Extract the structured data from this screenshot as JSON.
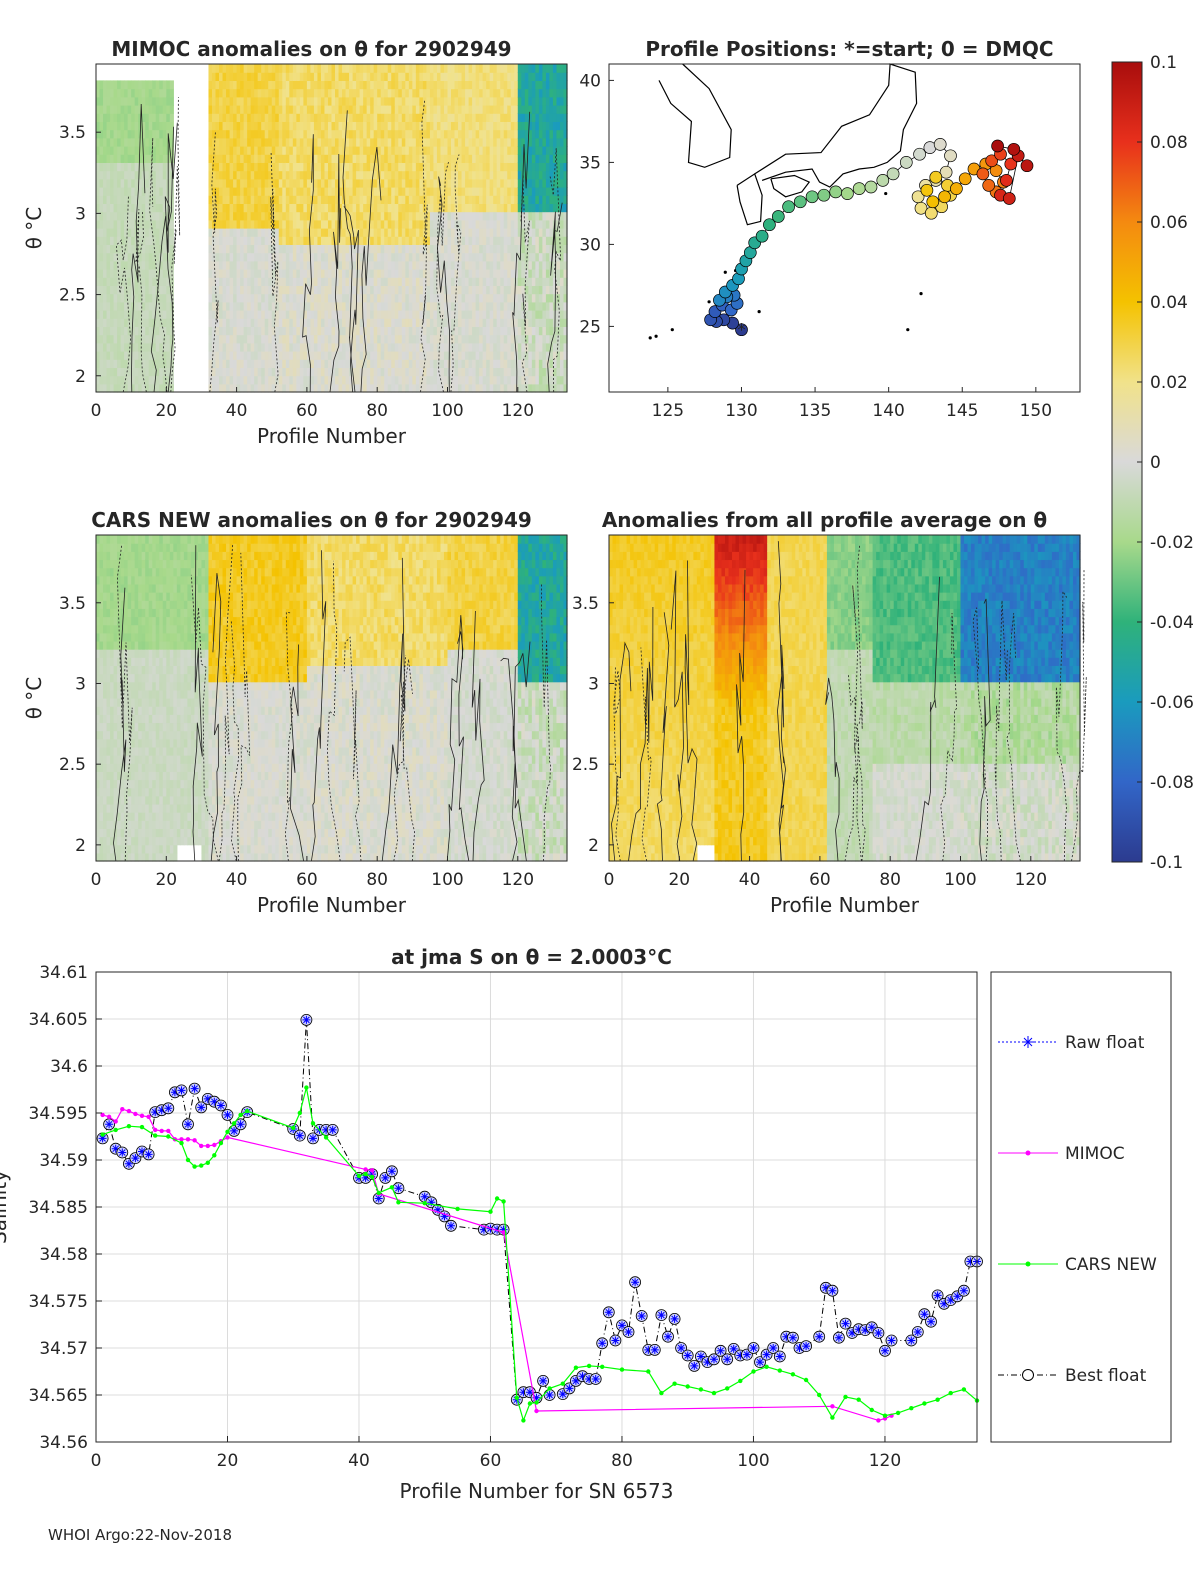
{
  "footer": "WHOI Argo:22-Nov-2018",
  "colors": {
    "raw": "#0000ff",
    "mimoc": "#ff00ff",
    "cars": "#00ff00",
    "best": "#000000"
  },
  "chart_data": [
    {
      "type": "heatmap",
      "title": "MIMOC anomalies on θ  for 2902949",
      "xlabel": "Profile Number",
      "ylabel": "θ °C",
      "xlim": [
        0,
        134
      ],
      "ylim": [
        1.9,
        3.92
      ],
      "xticks": [
        "0",
        "20",
        "40",
        "60",
        "80",
        "100",
        "120"
      ],
      "yticks": [
        "2",
        "2.5",
        "3",
        "3.5"
      ]
    },
    {
      "type": "scatter",
      "title": "Profile Positions: *=start; 0 = DMQC",
      "xlim": [
        121,
        153
      ],
      "ylim": [
        21,
        41
      ],
      "xticks": [
        "125",
        "130",
        "135",
        "140",
        "145",
        "150"
      ],
      "yticks": [
        "25",
        "30",
        "35",
        "40"
      ],
      "points": [
        [
          130.0,
          24.8
        ],
        [
          129.4,
          25.2
        ],
        [
          128.8,
          25.4
        ],
        [
          128.3,
          25.3
        ],
        [
          127.9,
          25.4
        ],
        [
          128.2,
          25.9
        ],
        [
          128.7,
          26.3
        ],
        [
          129.3,
          26.0
        ],
        [
          129.7,
          26.4
        ],
        [
          129.5,
          26.9
        ],
        [
          129.0,
          26.8
        ],
        [
          128.5,
          26.6
        ],
        [
          128.9,
          27.1
        ],
        [
          129.4,
          27.5
        ],
        [
          129.8,
          27.9
        ],
        [
          130.0,
          28.5
        ],
        [
          130.3,
          29.0
        ],
        [
          130.6,
          29.5
        ],
        [
          130.9,
          30.1
        ],
        [
          131.4,
          30.5
        ],
        [
          131.9,
          31.2
        ],
        [
          132.5,
          31.7
        ],
        [
          133.2,
          32.3
        ],
        [
          134.0,
          32.6
        ],
        [
          134.8,
          32.9
        ],
        [
          135.6,
          33.0
        ],
        [
          136.4,
          33.2
        ],
        [
          137.2,
          33.1
        ],
        [
          138.0,
          33.4
        ],
        [
          138.8,
          33.5
        ],
        [
          139.6,
          33.9
        ],
        [
          140.3,
          34.3
        ],
        [
          141.2,
          35.0
        ],
        [
          142.1,
          35.5
        ],
        [
          142.8,
          35.9
        ],
        [
          143.5,
          36.1
        ],
        [
          144.2,
          35.4
        ],
        [
          143.9,
          34.4
        ],
        [
          143.2,
          33.9
        ],
        [
          142.5,
          33.6
        ],
        [
          142.0,
          32.9
        ],
        [
          142.2,
          32.2
        ],
        [
          142.9,
          31.9
        ],
        [
          143.6,
          32.3
        ],
        [
          144.2,
          33.0
        ],
        [
          144.0,
          33.6
        ],
        [
          143.2,
          34.1
        ],
        [
          142.6,
          33.3
        ],
        [
          143.0,
          32.6
        ],
        [
          143.8,
          32.9
        ],
        [
          144.6,
          33.4
        ],
        [
          145.2,
          34.0
        ],
        [
          145.8,
          34.6
        ],
        [
          146.6,
          34.9
        ],
        [
          147.3,
          34.5
        ],
        [
          147.8,
          33.8
        ],
        [
          147.3,
          33.2
        ],
        [
          146.8,
          33.6
        ],
        [
          146.4,
          34.3
        ],
        [
          147.0,
          35.1
        ],
        [
          147.6,
          35.5
        ],
        [
          148.3,
          34.9
        ],
        [
          148.0,
          33.9
        ],
        [
          147.6,
          33.0
        ],
        [
          148.2,
          32.8
        ],
        [
          148.8,
          35.4
        ],
        [
          149.4,
          34.8
        ],
        [
          148.5,
          35.8
        ],
        [
          147.4,
          36.0
        ]
      ]
    },
    {
      "type": "heatmap",
      "title": "CARS NEW anomalies on θ for 2902949",
      "xlabel": "Profile Number",
      "ylabel": "θ °C",
      "xlim": [
        0,
        134
      ],
      "ylim": [
        1.9,
        3.92
      ],
      "xticks": [
        "0",
        "20",
        "40",
        "60",
        "80",
        "100",
        "120"
      ],
      "yticks": [
        "2",
        "2.5",
        "3",
        "3.5"
      ]
    },
    {
      "type": "heatmap",
      "title": "Anomalies from all profile average on θ",
      "xlabel": "Profile Number",
      "xlim": [
        0,
        134
      ],
      "ylim": [
        1.9,
        3.92
      ],
      "xticks": [
        "0",
        "20",
        "40",
        "60",
        "80",
        "100",
        "120"
      ],
      "yticks": [
        "2",
        "2.5",
        "3",
        "3.5"
      ]
    },
    {
      "type": "colorbar",
      "range": [
        -0.1,
        0.1
      ],
      "ticks": [
        "0.1",
        "0.08",
        "0.06",
        "0.04",
        "0.02",
        "0",
        "-0.02",
        "-0.04",
        "-0.06",
        "-0.08",
        "-0.1"
      ]
    },
    {
      "type": "line",
      "title": "at jma S on θ = 2.0003°C",
      "xlabel": "Profile Number for SN 6573",
      "ylabel": "Salinity",
      "xlim": [
        0,
        134
      ],
      "ylim": [
        34.56,
        34.61
      ],
      "xticks": [
        "0",
        "20",
        "40",
        "60",
        "80",
        "100",
        "120"
      ],
      "yticks": [
        "34.56",
        "34.565",
        "34.57",
        "34.575",
        "34.58",
        "34.585",
        "34.59",
        "34.595",
        "34.6",
        "34.605",
        "34.61"
      ],
      "legend": [
        "Raw float",
        "MIMOC",
        "CARS NEW",
        "Best float"
      ],
      "series": [
        {
          "name": "Best float",
          "x": [
            1,
            2,
            3,
            4,
            5,
            6,
            7,
            8,
            9,
            10,
            11,
            12,
            13,
            14,
            15,
            16,
            17,
            18,
            19,
            20,
            21,
            22,
            23,
            30,
            31,
            32,
            33,
            34,
            35,
            36,
            40,
            41,
            42,
            43,
            44,
            45,
            46,
            50,
            51,
            52,
            53,
            54,
            59,
            60,
            61,
            62,
            64,
            65,
            66,
            67,
            68,
            69,
            71,
            72,
            73,
            74,
            75,
            76,
            77,
            78,
            79,
            80,
            81,
            82,
            83,
            84,
            85,
            86,
            87,
            88,
            89,
            90,
            91,
            92,
            93,
            94,
            95,
            96,
            97,
            98,
            99,
            100,
            101,
            102,
            103,
            104,
            105,
            106,
            107,
            108,
            110,
            111,
            112,
            113,
            114,
            115,
            116,
            117,
            118,
            119,
            120,
            121,
            124,
            125,
            126,
            127,
            128,
            129,
            130,
            131,
            132,
            133,
            134
          ],
          "values": [
            34.5923,
            34.5938,
            34.5912,
            34.5908,
            34.5896,
            34.5902,
            34.5909,
            34.5906,
            34.5951,
            34.5953,
            34.5955,
            34.5972,
            34.5974,
            34.5938,
            34.5976,
            34.5956,
            34.5965,
            34.5962,
            34.5958,
            34.5948,
            34.5931,
            34.5938,
            34.5951,
            34.5933,
            34.5926,
            34.6049,
            34.5923,
            34.5932,
            34.5932,
            34.5932,
            34.5881,
            34.5881,
            34.5885,
            34.5859,
            34.5881,
            34.5888,
            34.587,
            34.5861,
            34.5855,
            34.5847,
            34.584,
            34.583,
            34.5826,
            34.5827,
            34.5826,
            34.5826,
            34.5645,
            34.5653,
            34.5653,
            34.5647,
            34.5665,
            34.565,
            34.5651,
            34.5657,
            34.5665,
            34.567,
            34.5667,
            34.5667,
            34.5705,
            34.5738,
            34.5708,
            34.5724,
            34.5717,
            34.577,
            34.5734,
            34.5698,
            34.5698,
            34.5735,
            34.5712,
            34.5731,
            34.57,
            34.5692,
            34.5681,
            34.5691,
            34.5685,
            34.5688,
            34.5697,
            34.5688,
            34.5699,
            34.5692,
            34.5693,
            34.57,
            34.5685,
            34.5693,
            34.57,
            34.5691,
            34.5712,
            34.5711,
            34.57,
            34.5702,
            34.5712,
            34.5764,
            34.5761,
            34.5711,
            34.5726,
            34.5716,
            34.572,
            34.5719,
            34.5722,
            34.5716,
            34.5697,
            34.5708,
            34.5708,
            34.5717,
            34.5736,
            34.5728,
            34.5756,
            34.5747,
            34.5751,
            34.5755,
            34.5761,
            34.5792,
            34.5792
          ]
        },
        {
          "name": "MIMOC",
          "x": [
            1,
            2,
            3,
            4,
            5,
            6,
            7,
            8,
            9,
            10,
            11,
            12,
            13,
            14,
            15,
            16,
            17,
            18,
            19,
            20,
            41,
            42,
            43,
            62,
            67,
            112,
            119,
            120,
            121
          ],
          "values": [
            34.5948,
            34.5946,
            34.5941,
            34.5954,
            34.5952,
            34.5949,
            34.5947,
            34.5946,
            34.5932,
            34.5931,
            34.5931,
            34.5922,
            34.5922,
            34.5922,
            34.5921,
            34.5915,
            34.5915,
            34.5916,
            34.592,
            34.5924,
            34.589,
            34.5889,
            34.5864,
            34.5823,
            34.5633,
            34.5638,
            34.5623,
            34.5625,
            34.5628
          ]
        },
        {
          "name": "CARS NEW",
          "x": [
            1,
            3,
            5,
            7,
            9,
            11,
            13,
            14,
            15,
            16,
            17,
            18,
            19,
            20,
            21,
            22,
            23,
            30,
            31,
            32,
            33,
            35,
            40,
            41,
            42,
            43,
            45,
            46,
            50,
            55,
            60,
            61,
            62,
            64,
            65,
            66,
            67,
            69,
            71,
            73,
            75,
            77,
            80,
            84,
            86,
            88,
            90,
            92,
            94,
            96,
            98,
            100,
            102,
            104,
            106,
            108,
            110,
            112,
            114,
            116,
            118,
            120,
            122,
            124,
            126,
            128,
            130,
            132,
            134
          ],
          "values": [
            34.5927,
            34.5932,
            34.5936,
            34.5935,
            34.5926,
            34.5925,
            34.5918,
            34.59,
            34.5893,
            34.5894,
            34.5897,
            34.5905,
            34.5918,
            34.593,
            34.5939,
            34.5948,
            34.5952,
            34.5934,
            34.595,
            34.5977,
            34.5939,
            34.5924,
            34.5883,
            34.5885,
            34.5882,
            34.5865,
            34.5871,
            34.5855,
            34.5854,
            34.5848,
            34.5845,
            34.5859,
            34.5856,
            34.5647,
            34.5623,
            34.5641,
            34.5642,
            34.5657,
            34.5662,
            34.5679,
            34.5681,
            34.568,
            34.5677,
            34.5675,
            34.5652,
            34.5662,
            34.5659,
            34.5656,
            34.5652,
            34.5657,
            34.5665,
            34.5675,
            34.568,
            34.5676,
            34.5672,
            34.5666,
            34.565,
            34.5626,
            34.5648,
            34.5645,
            34.5634,
            34.5628,
            34.5631,
            34.5636,
            34.5641,
            34.5645,
            34.5652,
            34.5656,
            34.5644
          ]
        }
      ]
    }
  ]
}
